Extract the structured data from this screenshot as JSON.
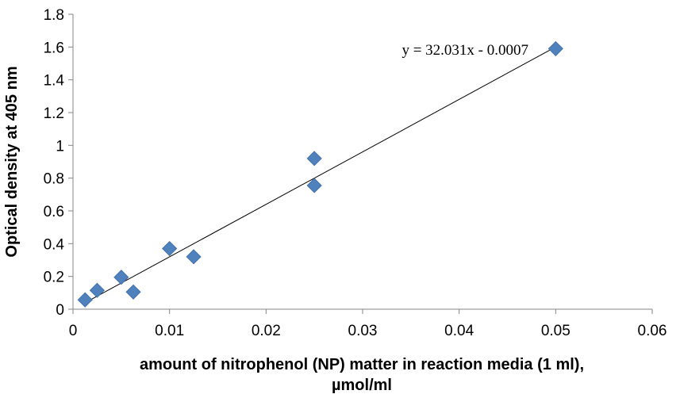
{
  "chart_data": {
    "type": "scatter",
    "xlabel_lines": [
      "amount of nitrophenol (NP) matter in reaction media (1 ml),",
      "µmol/ml"
    ],
    "ylabel": "Optical density at 405 nm",
    "xlim": [
      0,
      0.06
    ],
    "ylim": [
      0,
      1.8
    ],
    "x_ticks": [
      0,
      0.01,
      0.02,
      0.03,
      0.04,
      0.05,
      0.06
    ],
    "x_tick_labels": [
      "0",
      "0.01",
      "0.02",
      "0.03",
      "0.04",
      "0.05",
      "0.06"
    ],
    "y_ticks": [
      0,
      0.2,
      0.4,
      0.6,
      0.8,
      1.0,
      1.2,
      1.4,
      1.6,
      1.8
    ],
    "y_tick_labels": [
      "0",
      "0.2",
      "0.4",
      "0.6",
      "0.8",
      "1",
      "1.2",
      "1.4",
      "1.6",
      "1.8"
    ],
    "grid": false,
    "marker": "diamond",
    "marker_color": "#4f81bd",
    "trendline_color": "#000000",
    "points": [
      {
        "x": 0.00125,
        "y": 0.057
      },
      {
        "x": 0.0025,
        "y": 0.115
      },
      {
        "x": 0.005,
        "y": 0.195
      },
      {
        "x": 0.00625,
        "y": 0.105
      },
      {
        "x": 0.01,
        "y": 0.37
      },
      {
        "x": 0.0125,
        "y": 0.32
      },
      {
        "x": 0.025,
        "y": 0.92
      },
      {
        "x": 0.025,
        "y": 0.755
      },
      {
        "x": 0.05,
        "y": 1.59
      }
    ],
    "trendline": {
      "slope": 32.031,
      "intercept": -0.0007,
      "x_range": [
        0.00125,
        0.05
      ],
      "equation": "y = 32.031x - 0.0007"
    }
  }
}
